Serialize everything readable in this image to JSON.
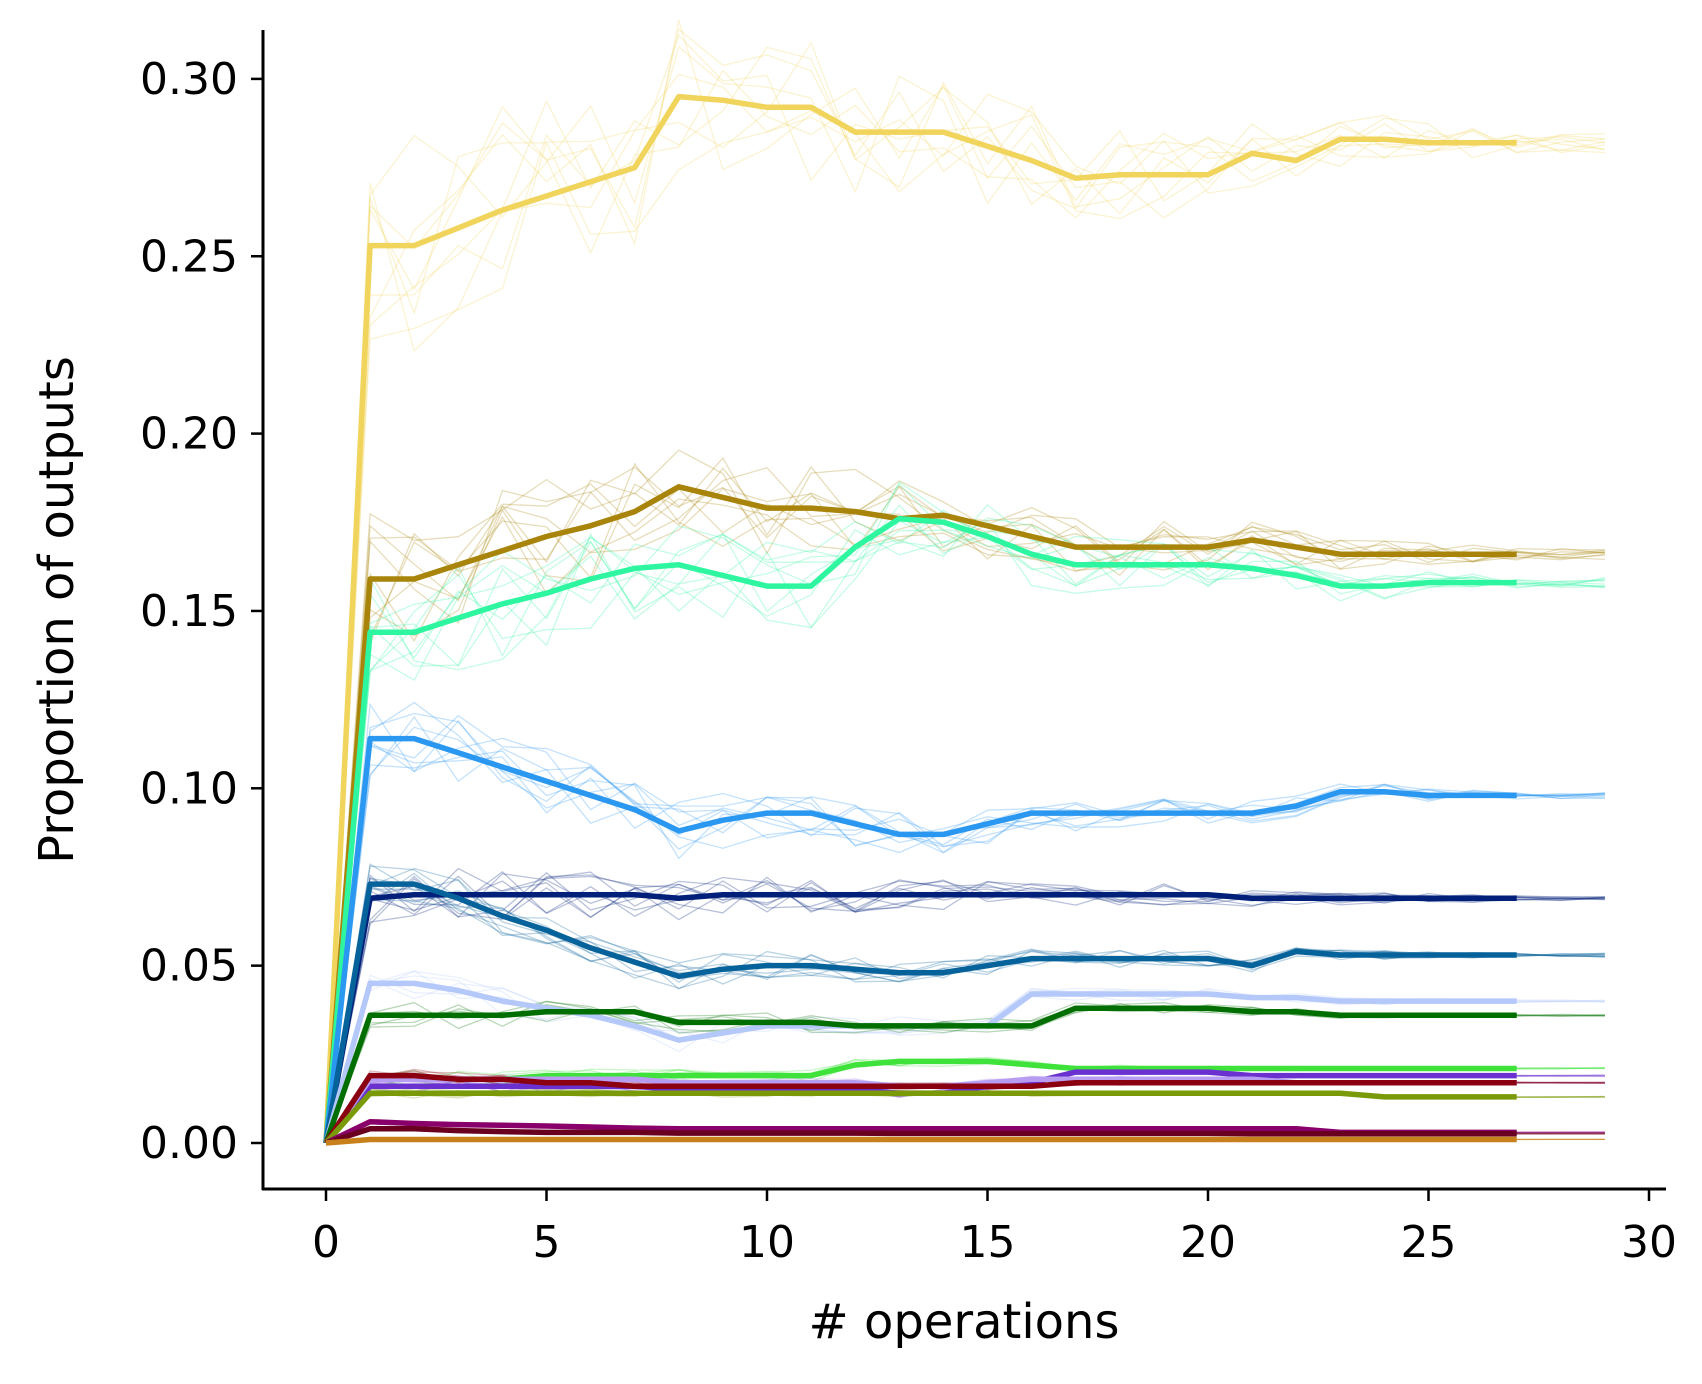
{
  "chart_data": {
    "type": "line",
    "title": "",
    "xlabel": "# operations",
    "ylabel": "Proportion of outputs",
    "xlim": [
      -1.4,
      30.5
    ],
    "ylim": [
      -0.0145,
      0.3115
    ],
    "xticks": [
      0,
      5,
      10,
      15,
      20,
      25,
      30
    ],
    "xtick_labels": [
      "0",
      "5",
      "10",
      "15",
      "20",
      "25",
      "30"
    ],
    "yticks": [
      0.0,
      0.05,
      0.1,
      0.15,
      0.2,
      0.25,
      0.3
    ],
    "ytick_labels": [
      "0.00",
      "0.05",
      "0.10",
      "0.15",
      "0.20",
      "0.25",
      "0.30"
    ],
    "grid": false,
    "legend": "none",
    "spines": [
      "left",
      "bottom"
    ],
    "notes_visible": "each group shows one bold series plus many thin faded replicate runs extending to x=29",
    "series": [
      {
        "color": "#f0d45c",
        "x": [
          0,
          1,
          2,
          3,
          4,
          5,
          6,
          7,
          8,
          9,
          10,
          11,
          12,
          13,
          14,
          15,
          16,
          17,
          18,
          19,
          20,
          21,
          22,
          23,
          24,
          25,
          26,
          27
        ],
        "values": [
          0,
          0.253,
          0.253,
          0.258,
          0.263,
          0.267,
          0.271,
          0.275,
          0.295,
          0.294,
          0.292,
          0.292,
          0.285,
          0.285,
          0.285,
          0.281,
          0.277,
          0.272,
          0.273,
          0.273,
          0.273,
          0.279,
          0.277,
          0.283,
          0.283,
          0.282,
          0.282,
          0.282
        ]
      },
      {
        "color": "#a8840a",
        "x": [
          0,
          1,
          2,
          3,
          4,
          5,
          6,
          7,
          8,
          9,
          10,
          11,
          12,
          13,
          14,
          15,
          16,
          17,
          18,
          19,
          20,
          21,
          22,
          23,
          24,
          25,
          26,
          27
        ],
        "values": [
          0,
          0.159,
          0.159,
          0.163,
          0.167,
          0.171,
          0.174,
          0.178,
          0.185,
          0.182,
          0.179,
          0.179,
          0.178,
          0.176,
          0.177,
          0.174,
          0.171,
          0.168,
          0.168,
          0.168,
          0.168,
          0.17,
          0.168,
          0.166,
          0.166,
          0.166,
          0.166,
          0.166
        ]
      },
      {
        "color": "#2ef5a0",
        "x": [
          0,
          1,
          2,
          3,
          4,
          5,
          6,
          7,
          8,
          9,
          10,
          11,
          12,
          13,
          14,
          15,
          16,
          17,
          18,
          19,
          20,
          21,
          22,
          23,
          24,
          25,
          26,
          27
        ],
        "values": [
          0,
          0.144,
          0.144,
          0.148,
          0.152,
          0.155,
          0.159,
          0.162,
          0.163,
          0.16,
          0.157,
          0.157,
          0.168,
          0.176,
          0.175,
          0.171,
          0.166,
          0.163,
          0.163,
          0.163,
          0.163,
          0.162,
          0.16,
          0.157,
          0.157,
          0.158,
          0.158,
          0.158
        ]
      },
      {
        "color": "#2a97f0",
        "x": [
          0,
          1,
          2,
          3,
          4,
          5,
          6,
          7,
          8,
          9,
          10,
          11,
          12,
          13,
          14,
          15,
          16,
          17,
          18,
          19,
          20,
          21,
          22,
          23,
          24,
          25,
          26,
          27
        ],
        "values": [
          0,
          0.114,
          0.114,
          0.11,
          0.106,
          0.102,
          0.098,
          0.094,
          0.088,
          0.091,
          0.093,
          0.093,
          0.09,
          0.087,
          0.087,
          0.09,
          0.093,
          0.093,
          0.093,
          0.093,
          0.093,
          0.093,
          0.095,
          0.099,
          0.099,
          0.098,
          0.098,
          0.098
        ]
      },
      {
        "color": "#00207a",
        "x": [
          0,
          1,
          2,
          3,
          4,
          5,
          6,
          7,
          8,
          9,
          10,
          11,
          12,
          13,
          14,
          15,
          16,
          17,
          18,
          19,
          20,
          21,
          22,
          23,
          24,
          25,
          26,
          27
        ],
        "values": [
          0,
          0.069,
          0.07,
          0.07,
          0.07,
          0.07,
          0.07,
          0.07,
          0.069,
          0.07,
          0.07,
          0.07,
          0.07,
          0.07,
          0.07,
          0.07,
          0.07,
          0.07,
          0.07,
          0.07,
          0.07,
          0.069,
          0.069,
          0.069,
          0.069,
          0.069,
          0.069,
          0.069
        ]
      },
      {
        "color": "#06629a",
        "x": [
          0,
          1,
          2,
          3,
          4,
          5,
          6,
          7,
          8,
          9,
          10,
          11,
          12,
          13,
          14,
          15,
          16,
          17,
          18,
          19,
          20,
          21,
          22,
          23,
          24,
          25,
          26,
          27
        ],
        "values": [
          0,
          0.073,
          0.073,
          0.069,
          0.064,
          0.06,
          0.055,
          0.051,
          0.047,
          0.049,
          0.05,
          0.05,
          0.049,
          0.048,
          0.048,
          0.05,
          0.052,
          0.052,
          0.052,
          0.052,
          0.052,
          0.05,
          0.054,
          0.053,
          0.053,
          0.053,
          0.053,
          0.053
        ]
      },
      {
        "color": "#b4c8fa",
        "x": [
          0,
          1,
          2,
          3,
          4,
          5,
          6,
          7,
          8,
          9,
          10,
          11,
          12,
          13,
          14,
          15,
          16,
          17,
          18,
          19,
          20,
          21,
          22,
          23,
          24,
          25,
          26,
          27
        ],
        "values": [
          0,
          0.045,
          0.045,
          0.043,
          0.04,
          0.038,
          0.036,
          0.033,
          0.029,
          0.031,
          0.033,
          0.033,
          0.033,
          0.033,
          0.033,
          0.033,
          0.042,
          0.042,
          0.042,
          0.042,
          0.042,
          0.041,
          0.041,
          0.04,
          0.04,
          0.04,
          0.04,
          0.04
        ]
      },
      {
        "color": "#006e00",
        "x": [
          0,
          1,
          2,
          3,
          4,
          5,
          6,
          7,
          8,
          9,
          10,
          11,
          12,
          13,
          14,
          15,
          16,
          17,
          18,
          19,
          20,
          21,
          22,
          23,
          24,
          25,
          26,
          27
        ],
        "values": [
          0,
          0.036,
          0.036,
          0.036,
          0.036,
          0.037,
          0.037,
          0.037,
          0.034,
          0.034,
          0.034,
          0.034,
          0.033,
          0.033,
          0.033,
          0.033,
          0.033,
          0.038,
          0.038,
          0.038,
          0.038,
          0.037,
          0.037,
          0.036,
          0.036,
          0.036,
          0.036,
          0.036
        ]
      },
      {
        "color": "#3ee23a",
        "x": [
          0,
          1,
          2,
          3,
          4,
          5,
          6,
          7,
          8,
          9,
          10,
          11,
          12,
          13,
          14,
          15,
          16,
          17,
          18,
          19,
          20,
          21,
          22,
          23,
          24,
          25,
          26,
          27
        ],
        "values": [
          0,
          0.018,
          0.018,
          0.018,
          0.018,
          0.019,
          0.019,
          0.019,
          0.019,
          0.019,
          0.019,
          0.019,
          0.022,
          0.023,
          0.023,
          0.023,
          0.022,
          0.021,
          0.021,
          0.021,
          0.021,
          0.021,
          0.021,
          0.021,
          0.021,
          0.021,
          0.021,
          0.021
        ]
      },
      {
        "color": "#6a30d0",
        "x": [
          0,
          1,
          2,
          3,
          4,
          5,
          6,
          7,
          8,
          9,
          10,
          11,
          12,
          13,
          14,
          15,
          16,
          17,
          18,
          19,
          20,
          21,
          22,
          23,
          24,
          25,
          26,
          27
        ],
        "values": [
          0,
          0.016,
          0.016,
          0.016,
          0.016,
          0.016,
          0.016,
          0.016,
          0.015,
          0.015,
          0.015,
          0.015,
          0.015,
          0.014,
          0.014,
          0.016,
          0.017,
          0.02,
          0.02,
          0.02,
          0.02,
          0.019,
          0.019,
          0.019,
          0.019,
          0.019,
          0.019,
          0.019
        ]
      },
      {
        "color": "#b79cf2",
        "x": [
          0,
          1,
          2,
          3,
          4,
          5,
          6,
          7,
          8,
          9,
          10,
          11,
          12,
          13,
          14,
          15,
          16,
          17,
          18,
          19,
          20,
          21,
          22,
          23,
          24,
          25,
          26,
          27
        ],
        "values": [
          0,
          0.018,
          0.018,
          0.018,
          0.018,
          0.018,
          0.018,
          0.018,
          0.017,
          0.017,
          0.017,
          0.017,
          0.017,
          0.016,
          0.016,
          0.017,
          0.018,
          0.018,
          0.018,
          0.018,
          0.018,
          0.018,
          0.017,
          0.017,
          0.017,
          0.017,
          0.017,
          0.017
        ]
      },
      {
        "color": "#8a0010",
        "x": [
          0,
          1,
          2,
          3,
          4,
          5,
          6,
          7,
          8,
          9,
          10,
          11,
          12,
          13,
          14,
          15,
          16,
          17,
          18,
          19,
          20,
          21,
          22,
          23,
          24,
          25,
          26,
          27
        ],
        "values": [
          0,
          0.019,
          0.019,
          0.018,
          0.018,
          0.017,
          0.017,
          0.016,
          0.016,
          0.016,
          0.016,
          0.016,
          0.016,
          0.016,
          0.016,
          0.016,
          0.016,
          0.017,
          0.017,
          0.017,
          0.017,
          0.017,
          0.017,
          0.017,
          0.017,
          0.017,
          0.017,
          0.017
        ]
      },
      {
        "color": "#7a9a0a",
        "x": [
          0,
          1,
          2,
          3,
          4,
          5,
          6,
          7,
          8,
          9,
          10,
          11,
          12,
          13,
          14,
          15,
          16,
          17,
          18,
          19,
          20,
          21,
          22,
          23,
          24,
          25,
          26,
          27
        ],
        "values": [
          0,
          0.014,
          0.014,
          0.014,
          0.014,
          0.014,
          0.014,
          0.014,
          0.014,
          0.014,
          0.014,
          0.014,
          0.014,
          0.014,
          0.014,
          0.014,
          0.014,
          0.014,
          0.014,
          0.014,
          0.014,
          0.014,
          0.014,
          0.014,
          0.013,
          0.013,
          0.013,
          0.013
        ]
      },
      {
        "color": "#8a006a",
        "x": [
          0,
          1,
          2,
          3,
          4,
          5,
          6,
          7,
          8,
          9,
          10,
          11,
          12,
          13,
          14,
          15,
          16,
          17,
          18,
          19,
          20,
          21,
          22,
          23,
          24,
          25,
          26,
          27
        ],
        "values": [
          0,
          0.006,
          0.0055,
          0.0052,
          0.005,
          0.0048,
          0.0045,
          0.0042,
          0.004,
          0.004,
          0.004,
          0.004,
          0.004,
          0.004,
          0.004,
          0.004,
          0.004,
          0.004,
          0.004,
          0.004,
          0.004,
          0.004,
          0.004,
          0.003,
          0.003,
          0.003,
          0.003,
          0.003
        ]
      },
      {
        "color": "#6a0020",
        "x": [
          0,
          1,
          2,
          3,
          4,
          5,
          6,
          7,
          8,
          9,
          10,
          11,
          12,
          13,
          14,
          15,
          16,
          17,
          18,
          19,
          20,
          21,
          22,
          23,
          24,
          25,
          26,
          27
        ],
        "values": [
          0,
          0.004,
          0.004,
          0.0035,
          0.0032,
          0.003,
          0.003,
          0.003,
          0.0028,
          0.0028,
          0.0028,
          0.0028,
          0.0028,
          0.0027,
          0.0027,
          0.0027,
          0.0027,
          0.0027,
          0.0027,
          0.0027,
          0.0027,
          0.0026,
          0.0026,
          0.0026,
          0.0026,
          0.0026,
          0.0026,
          0.0026
        ]
      },
      {
        "color": "#c8801a",
        "x": [
          0,
          1,
          2,
          3,
          4,
          5,
          6,
          7,
          8,
          9,
          10,
          11,
          12,
          13,
          14,
          15,
          16,
          17,
          18,
          19,
          20,
          21,
          22,
          23,
          24,
          25,
          26,
          27
        ],
        "values": [
          0,
          0.001,
          0.001,
          0.001,
          0.001,
          0.001,
          0.001,
          0.001,
          0.001,
          0.001,
          0.001,
          0.001,
          0.001,
          0.001,
          0.001,
          0.001,
          0.001,
          0.001,
          0.001,
          0.001,
          0.001,
          0.001,
          0.001,
          0.001,
          0.001,
          0.001,
          0.001,
          0.001
        ]
      }
    ]
  }
}
